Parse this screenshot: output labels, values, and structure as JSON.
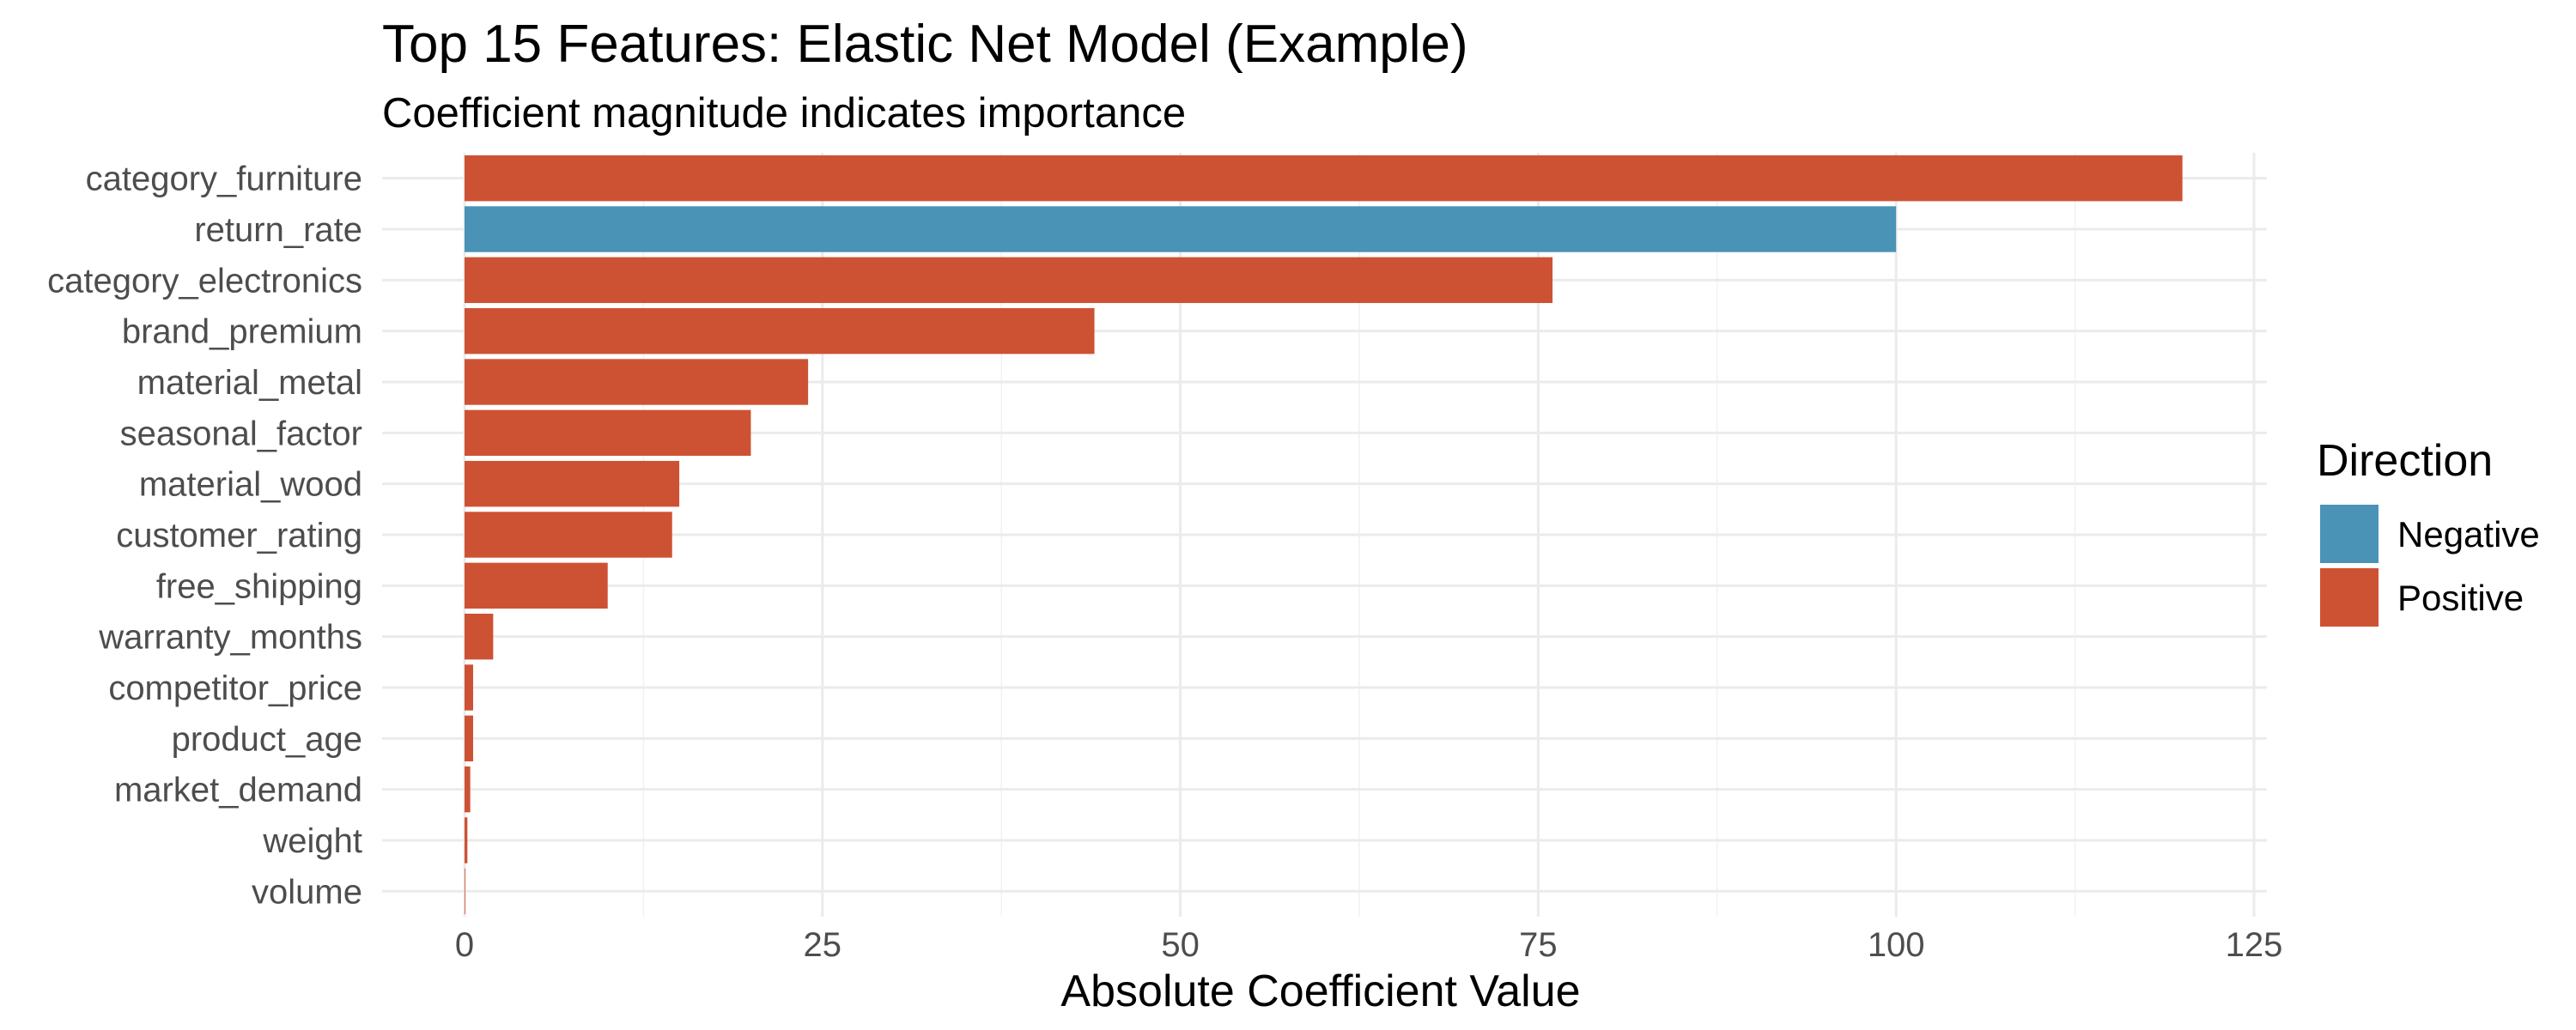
{
  "chart_data": {
    "type": "bar",
    "orientation": "horizontal",
    "title": "Top 15 Features: Elastic Net Model (Example)",
    "subtitle": "Coefficient magnitude indicates importance",
    "xlabel": "Absolute Coefficient Value",
    "ylabel": "",
    "xlim": [
      0,
      125
    ],
    "xticks": [
      0,
      25,
      50,
      75,
      100,
      125
    ],
    "xtick_labels": [
      "0",
      "25",
      "50",
      "75",
      "100",
      "125"
    ],
    "grid": true,
    "legend": {
      "title": "Direction",
      "position": "right",
      "entries": [
        {
          "label": "Negative",
          "color": "#4a93b6"
        },
        {
          "label": "Positive",
          "color": "#cd5234"
        }
      ]
    },
    "categories": [
      "category_furniture",
      "return_rate",
      "category_electronics",
      "brand_premium",
      "material_metal",
      "seasonal_factor",
      "material_wood",
      "customer_rating",
      "free_shipping",
      "warranty_months",
      "competitor_price",
      "product_age",
      "market_demand",
      "weight",
      "volume"
    ],
    "values": [
      120,
      100,
      76,
      44,
      24,
      20,
      15,
      14.5,
      10,
      2,
      0.6,
      0.6,
      0.4,
      0.2,
      0.05
    ],
    "direction": [
      "Positive",
      "Negative",
      "Positive",
      "Positive",
      "Positive",
      "Positive",
      "Positive",
      "Positive",
      "Positive",
      "Positive",
      "Positive",
      "Positive",
      "Positive",
      "Positive",
      "Positive"
    ]
  }
}
